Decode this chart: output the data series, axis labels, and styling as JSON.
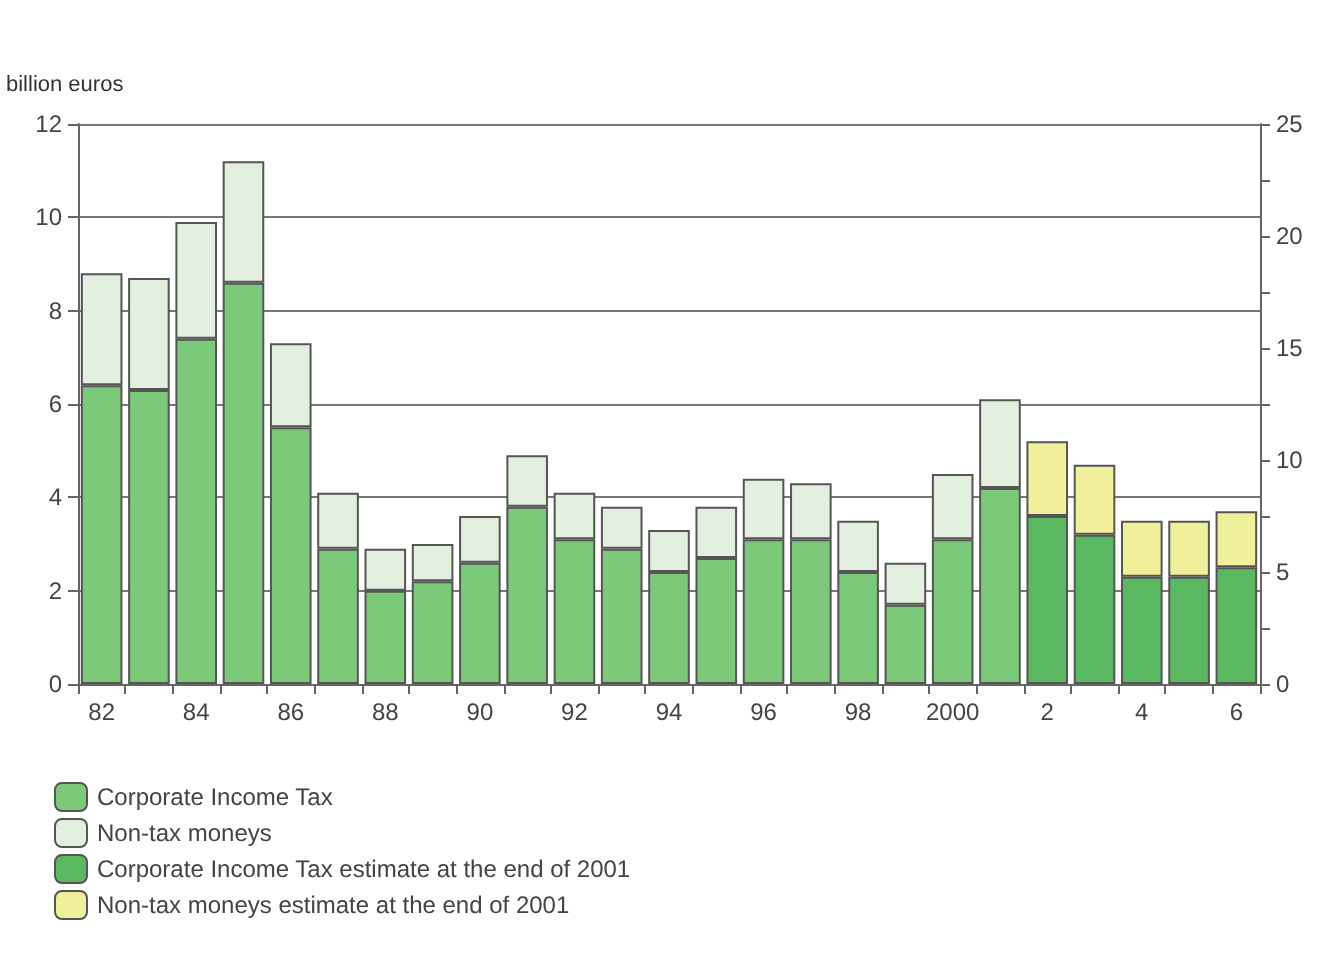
{
  "chart_data": {
    "type": "bar",
    "stacked": true,
    "ylabel": "billion euros",
    "categories": [
      "82",
      null,
      "84",
      null,
      "86",
      null,
      "88",
      null,
      "90",
      null,
      "92",
      null,
      "94",
      null,
      "96",
      null,
      "98",
      null,
      "2000",
      null,
      "2",
      null,
      "4",
      null,
      "6"
    ],
    "series": [
      {
        "name": "Corporate Income Tax",
        "color": "#7cc97a",
        "values": [
          6.4,
          6.3,
          7.4,
          8.6,
          5.5,
          2.9,
          2.0,
          2.2,
          2.6,
          3.8,
          3.1,
          2.9,
          2.4,
          2.7,
          3.1,
          3.1,
          2.4,
          1.7,
          3.1,
          4.2,
          null,
          null,
          null,
          null,
          null
        ]
      },
      {
        "name": "Non-tax moneys",
        "color": "#e3efdf",
        "values": [
          2.4,
          2.4,
          2.5,
          2.6,
          1.8,
          1.2,
          0.9,
          0.8,
          1.0,
          1.1,
          1.0,
          0.9,
          0.9,
          1.1,
          1.3,
          1.2,
          1.1,
          0.9,
          1.4,
          1.9,
          null,
          null,
          null,
          null,
          null
        ]
      },
      {
        "name": "Corporate Income Tax estimate at the end of 2001",
        "color": "#5ab860",
        "values": [
          null,
          null,
          null,
          null,
          null,
          null,
          null,
          null,
          null,
          null,
          null,
          null,
          null,
          null,
          null,
          null,
          null,
          null,
          null,
          null,
          3.6,
          3.2,
          2.3,
          2.3,
          2.5
        ]
      },
      {
        "name": "Non-tax moneys estimate at the end of 2001",
        "color": "#f0ef9a",
        "values": [
          null,
          null,
          null,
          null,
          null,
          null,
          null,
          null,
          null,
          null,
          null,
          null,
          null,
          null,
          null,
          null,
          null,
          null,
          null,
          null,
          1.6,
          1.5,
          1.2,
          1.2,
          1.2
        ]
      }
    ],
    "ylim": [
      0,
      12
    ],
    "yticks": [
      0,
      2,
      4,
      6,
      8,
      10,
      12
    ],
    "y2lim": [
      0,
      25
    ],
    "y2ticks": [
      0,
      {
        "value": 2.5,
        "label": null
      },
      5,
      {
        "value": 7.5,
        "label": null
      },
      10,
      {
        "value": 12.5,
        "label": null
      },
      15,
      {
        "value": 17.5,
        "label": null
      },
      20,
      {
        "value": 22.5,
        "label": null
      },
      25
    ],
    "grid": "y",
    "legend": "bottom left"
  }
}
